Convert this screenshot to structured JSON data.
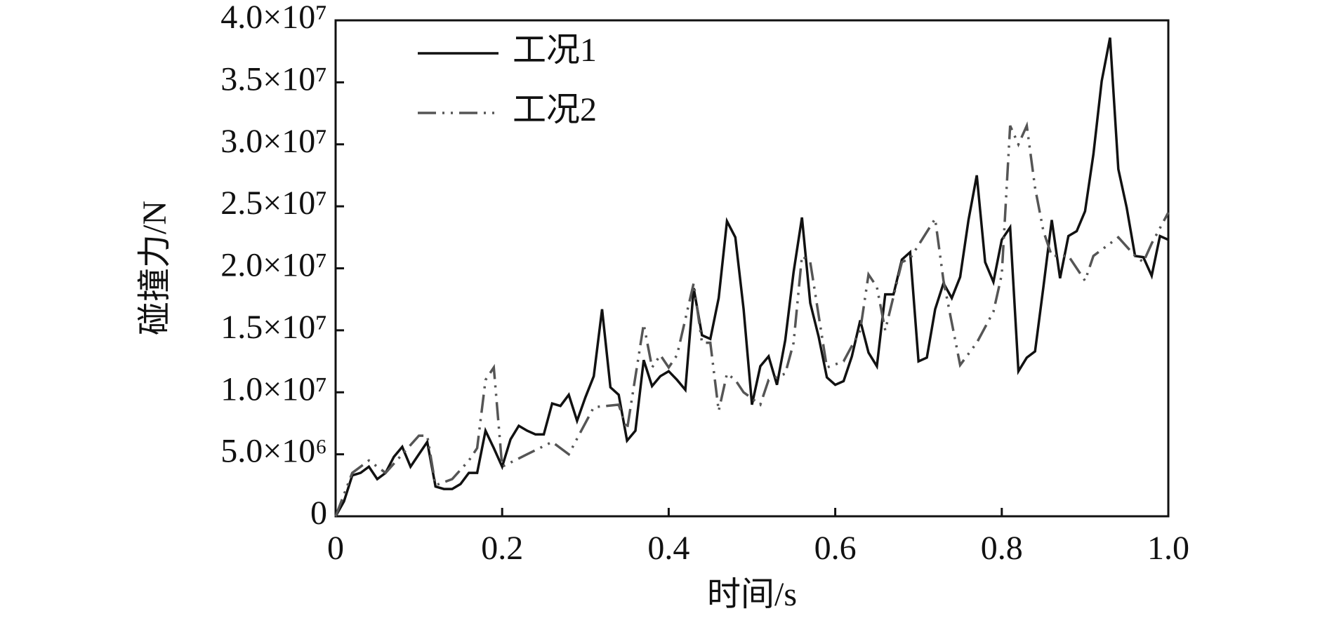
{
  "chart_data": {
    "type": "line",
    "xlabel": "时间/s",
    "ylabel": "碰撞力/N",
    "xlim": [
      0,
      1
    ],
    "ylim": [
      0,
      40000000.0
    ],
    "xticks": [
      0,
      0.2,
      0.4,
      0.6,
      0.8,
      {
        "value": 1,
        "label": "1.0"
      }
    ],
    "yticks": [
      0,
      {
        "value": 5000000.0,
        "label": "5.0×10⁶"
      },
      {
        "value": 10000000.0,
        "label": "1.0×10⁷"
      },
      {
        "value": 15000000.0,
        "label": "1.5×10⁷"
      },
      {
        "value": 20000000.0,
        "label": "2.0×10⁷"
      },
      {
        "value": 25000000.0,
        "label": "2.5×10⁷"
      },
      {
        "value": 30000000.0,
        "label": "3.0×10⁷"
      },
      {
        "value": 35000000.0,
        "label": "3.5×10⁷"
      },
      {
        "value": 40000000.0,
        "label": "4.0×10⁷"
      }
    ],
    "legend": "upper left",
    "series": [
      {
        "name": "工况1",
        "color": "#111111",
        "dash": "solid",
        "x": [
          0,
          0.01,
          0.02,
          0.03,
          0.04,
          0.05,
          0.06,
          0.07,
          0.08,
          0.09,
          0.1,
          0.11,
          0.12,
          0.13,
          0.14,
          0.15,
          0.16,
          0.17,
          0.18,
          0.19,
          0.2,
          0.21,
          0.22,
          0.23,
          0.24,
          0.25,
          0.26,
          0.27,
          0.28,
          0.29,
          0.3,
          0.31,
          0.32,
          0.33,
          0.34,
          0.35,
          0.36,
          0.37,
          0.38,
          0.39,
          0.4,
          0.41,
          0.42,
          0.43,
          0.44,
          0.45,
          0.46,
          0.47,
          0.48,
          0.49,
          0.5,
          0.51,
          0.52,
          0.53,
          0.54,
          0.55,
          0.56,
          0.57,
          0.58,
          0.59,
          0.6,
          0.61,
          0.62,
          0.63,
          0.64,
          0.65,
          0.66,
          0.67,
          0.68,
          0.69,
          0.7,
          0.71,
          0.72,
          0.73,
          0.74,
          0.75,
          0.76,
          0.77,
          0.78,
          0.79,
          0.8,
          0.81,
          0.82,
          0.83,
          0.84,
          0.85,
          0.86,
          0.87,
          0.88,
          0.89,
          0.9,
          0.91,
          0.92,
          0.93,
          0.94,
          0.95,
          0.96,
          0.97,
          0.98,
          0.99,
          1
        ],
        "values": [
          0,
          1200000.0,
          3300000.0,
          3500000.0,
          4000000.0,
          3000000.0,
          3500000.0,
          4800000.0,
          5600000.0,
          4000000.0,
          5000000.0,
          6000000.0,
          2400000.0,
          2200000.0,
          2200000.0,
          2600000.0,
          3500000.0,
          3500000.0,
          6900000.0,
          5500000.0,
          4000000.0,
          6200000.0,
          7300000.0,
          6900000.0,
          6600000.0,
          6600000.0,
          9100000.0,
          8900000.0,
          9800000.0,
          7700000.0,
          9600000.0,
          11300000.0,
          16700000.0,
          10400000.0,
          9800000.0,
          6100000.0,
          6900000.0,
          12600000.0,
          10500000.0,
          11300000.0,
          11700000.0,
          11000000.0,
          10200000.0,
          18400000.0,
          14600000.0,
          14300000.0,
          17600000.0,
          23800000.0,
          22500000.0,
          16700000.0,
          9000000.0,
          12100000.0,
          12900000.0,
          10600000.0,
          14200000.0,
          19700000.0,
          24100000.0,
          17200000.0,
          14500000.0,
          11200000.0,
          10600000.0,
          10900000.0,
          12900000.0,
          15800000.0,
          13200000.0,
          12100000.0,
          17900000.0,
          17900000.0,
          20700000.0,
          21300000.0,
          12500000.0,
          12800000.0,
          16700000.0,
          18800000.0,
          17600000.0,
          19300000.0,
          23900000.0,
          27500000.0,
          20500000.0,
          18900000.0,
          22300000.0,
          23300000.0,
          11700000.0,
          12800000.0,
          13300000.0,
          18500000.0,
          23900000.0,
          19200000.0,
          22600000.0,
          23000000.0,
          24600000.0,
          29200000.0,
          35100000.0,
          38600000.0,
          28000000.0,
          24900000.0,
          21000000.0,
          20900000.0,
          19400000.0,
          22600000.0,
          22300000.0
        ]
      },
      {
        "name": "工况2",
        "color": "#555555",
        "dash": "dashdotdot",
        "x": [
          0,
          0.02,
          0.04,
          0.06,
          0.08,
          0.1,
          0.11,
          0.12,
          0.14,
          0.16,
          0.17,
          0.18,
          0.19,
          0.2,
          0.23,
          0.26,
          0.28,
          0.31,
          0.34,
          0.35,
          0.37,
          0.38,
          0.39,
          0.4,
          0.41,
          0.43,
          0.44,
          0.45,
          0.46,
          0.47,
          0.48,
          0.49,
          0.51,
          0.52,
          0.54,
          0.55,
          0.56,
          0.57,
          0.59,
          0.61,
          0.63,
          0.64,
          0.65,
          0.66,
          0.68,
          0.69,
          0.72,
          0.73,
          0.75,
          0.77,
          0.79,
          0.8,
          0.81,
          0.82,
          0.83,
          0.84,
          0.85,
          0.86,
          0.88,
          0.9,
          0.91,
          0.92,
          0.93,
          0.94,
          0.96,
          0.97,
          0.98,
          1
        ],
        "values": [
          0,
          3500000.0,
          4500000.0,
          3500000.0,
          5000000.0,
          6500000.0,
          6500000.0,
          2500000.0,
          3000000.0,
          4500000.0,
          5500000.0,
          11000000.0,
          12000000.0,
          4000000.0,
          5000000.0,
          6000000.0,
          5000000.0,
          8800000.0,
          9000000.0,
          7000000.0,
          15500000.0,
          12000000.0,
          13000000.0,
          12000000.0,
          13000000.0,
          18800000.0,
          14000000.0,
          14000000.0,
          8500000.0,
          11500000.0,
          11000000.0,
          10000000.0,
          9000000.0,
          11000000.0,
          11500000.0,
          14000000.0,
          21000000.0,
          20500000.0,
          12000000.0,
          12500000.0,
          15000000.0,
          19500000.0,
          18500000.0,
          15000000.0,
          20500000.0,
          20800000.0,
          24000000.0,
          19000000.0,
          12200000.0,
          14000000.0,
          16500000.0,
          19500000.0,
          31500000.0,
          30000000.0,
          31500000.0,
          26500000.0,
          23000000.0,
          21000000.0,
          21000000.0,
          19000000.0,
          21000000.0,
          21500000.0,
          22000000.0,
          22500000.0,
          21000000.0,
          20500000.0,
          22000000.0,
          24500000.0
        ]
      }
    ]
  }
}
